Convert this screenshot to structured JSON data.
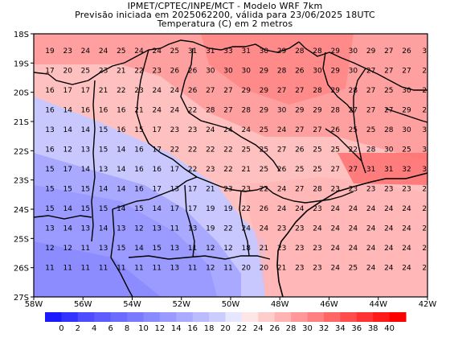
{
  "titles": {
    "line1": "IPMET/CPTEC/INPE/MCT - Modelo WRF 7km",
    "line2": "Previsão iniciada em 2025062200, válida para 23/06/2025 18UTC",
    "line3": "Temperatura (C) em 2 metros"
  },
  "axes": {
    "lat_labels": [
      "18S",
      "19S",
      "20S",
      "21S",
      "22S",
      "23S",
      "24S",
      "25S",
      "26S",
      "27S"
    ],
    "lon_labels": [
      "58W",
      "56W",
      "54W",
      "52W",
      "50W",
      "48W",
      "46W",
      "44W",
      "42W"
    ]
  },
  "colorbar": {
    "ticks": [
      "0",
      "2",
      "4",
      "6",
      "8",
      "10",
      "12",
      "14",
      "16",
      "18",
      "20",
      "22",
      "24",
      "26",
      "28",
      "30",
      "32",
      "34",
      "36",
      "38",
      "40"
    ],
    "colors": [
      "#1a1aff",
      "#3333ff",
      "#4d4dff",
      "#5c5cff",
      "#6b6bff",
      "#7a7aff",
      "#8a8aff",
      "#9999ff",
      "#aaaaff",
      "#bbbbff",
      "#ccccff",
      "#e6e6ff",
      "#ffe6e6",
      "#ffcccc",
      "#ffb3b3",
      "#ff9999",
      "#ff8080",
      "#ff6666",
      "#ff4d4d",
      "#ff3333",
      "#ff1a1a",
      "#ff0000"
    ]
  },
  "grid_values": [
    [
      19,
      23,
      24,
      24,
      25,
      24,
      24,
      25,
      31,
      31,
      33,
      31,
      30,
      29,
      28,
      28,
      29,
      30,
      29,
      27,
      26,
      "3"
    ],
    [
      17,
      20,
      25,
      23,
      21,
      22,
      23,
      26,
      26,
      30,
      30,
      30,
      29,
      28,
      26,
      30,
      29,
      30,
      27,
      27,
      27,
      "2"
    ],
    [
      16,
      17,
      17,
      21,
      22,
      23,
      24,
      24,
      26,
      27,
      27,
      29,
      29,
      27,
      27,
      28,
      29,
      28,
      27,
      25,
      30,
      "2"
    ],
    [
      16,
      14,
      16,
      16,
      16,
      21,
      24,
      24,
      22,
      28,
      27,
      28,
      29,
      30,
      29,
      29,
      28,
      27,
      27,
      27,
      29,
      "2"
    ],
    [
      13,
      14,
      14,
      15,
      16,
      15,
      17,
      23,
      23,
      24,
      24,
      24,
      25,
      24,
      27,
      27,
      26,
      25,
      25,
      28,
      30,
      "3"
    ],
    [
      16,
      12,
      13,
      15,
      14,
      16,
      17,
      22,
      22,
      22,
      22,
      25,
      25,
      27,
      26,
      25,
      25,
      22,
      28,
      30,
      25,
      "3"
    ],
    [
      15,
      17,
      14,
      13,
      14,
      16,
      16,
      17,
      22,
      23,
      22,
      21,
      25,
      26,
      25,
      25,
      27,
      27,
      31,
      31,
      32,
      "3"
    ],
    [
      15,
      15,
      15,
      14,
      14,
      16,
      17,
      13,
      17,
      21,
      23,
      23,
      22,
      24,
      27,
      28,
      23,
      23,
      23,
      23,
      23,
      "2"
    ],
    [
      15,
      14,
      15,
      15,
      14,
      15,
      14,
      17,
      17,
      19,
      19,
      22,
      26,
      24,
      24,
      23,
      24,
      24,
      24,
      24,
      24,
      "2"
    ],
    [
      13,
      14,
      13,
      14,
      13,
      12,
      13,
      11,
      13,
      19,
      22,
      24,
      24,
      23,
      23,
      24,
      24,
      24,
      24,
      24,
      24,
      "2"
    ],
    [
      12,
      12,
      11,
      13,
      15,
      14,
      15,
      13,
      11,
      12,
      12,
      18,
      21,
      23,
      23,
      23,
      24,
      24,
      24,
      24,
      24,
      "2"
    ],
    [
      11,
      11,
      11,
      11,
      11,
      11,
      11,
      13,
      11,
      12,
      11,
      20,
      20,
      21,
      23,
      23,
      24,
      25,
      24,
      24,
      24,
      "2"
    ]
  ]
}
